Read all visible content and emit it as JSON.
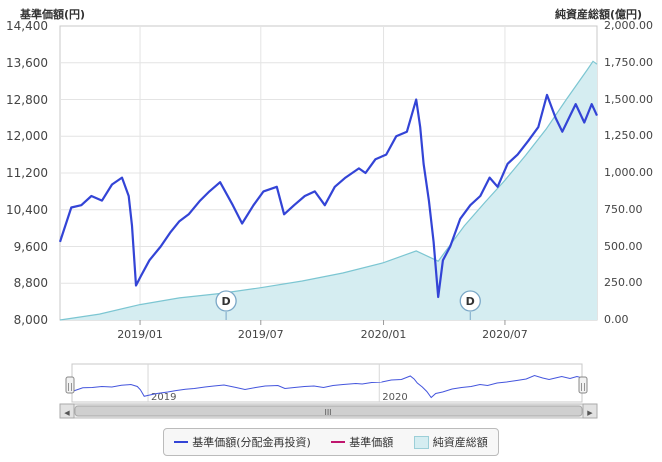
{
  "chart_data": {
    "type": "line",
    "left_axis_title": "基準価額(円)",
    "right_axis_title": "純資産総額(億円)",
    "left_ticks": [
      "14,400",
      "13,600",
      "12,800",
      "12,000",
      "11,200",
      "10,400",
      "9,600",
      "8,800",
      "8,000"
    ],
    "right_ticks": [
      "2,000.00",
      "1,750.00",
      "1,500.00",
      "1,250.00",
      "1,000.00",
      "750.00",
      "500.00",
      "250.00",
      "0.00"
    ],
    "x_ticks": [
      "2019/01",
      "2019/07",
      "2020/01",
      "2020/07"
    ],
    "ylim_left": [
      8000,
      14400
    ],
    "ylim_right": [
      0,
      2000
    ],
    "xlim": [
      "2018-09-03",
      "2020-11-16"
    ],
    "dividend_markers": [
      {
        "label": "D",
        "date": "2019-05-10"
      },
      {
        "label": "D",
        "date": "2020-05-10"
      }
    ],
    "series": [
      {
        "name": "基準価額(分配金再投資)",
        "color": "#3344d6",
        "axis": "left",
        "points": [
          [
            "2018-09-03",
            9700
          ],
          [
            "2018-09-20",
            10450
          ],
          [
            "2018-10-05",
            10500
          ],
          [
            "2018-10-20",
            10700
          ],
          [
            "2018-11-05",
            10600
          ],
          [
            "2018-11-20",
            10950
          ],
          [
            "2018-12-05",
            11100
          ],
          [
            "2018-12-15",
            10700
          ],
          [
            "2018-12-20",
            10050
          ],
          [
            "2018-12-26",
            8750
          ],
          [
            "2019-01-02",
            8950
          ],
          [
            "2019-01-15",
            9300
          ],
          [
            "2019-02-01",
            9600
          ],
          [
            "2019-02-15",
            9900
          ],
          [
            "2019-03-01",
            10150
          ],
          [
            "2019-03-15",
            10300
          ],
          [
            "2019-04-01",
            10600
          ],
          [
            "2019-04-15",
            10800
          ],
          [
            "2019-05-01",
            11000
          ],
          [
            "2019-05-20",
            10500
          ],
          [
            "2019-06-03",
            10100
          ],
          [
            "2019-06-20",
            10500
          ],
          [
            "2019-07-05",
            10800
          ],
          [
            "2019-07-25",
            10900
          ],
          [
            "2019-08-05",
            10300
          ],
          [
            "2019-08-20",
            10500
          ],
          [
            "2019-09-05",
            10700
          ],
          [
            "2019-09-20",
            10800
          ],
          [
            "2019-10-05",
            10500
          ],
          [
            "2019-10-20",
            10900
          ],
          [
            "2019-11-05",
            11100
          ],
          [
            "2019-11-25",
            11300
          ],
          [
            "2019-12-05",
            11200
          ],
          [
            "2019-12-20",
            11500
          ],
          [
            "2020-01-05",
            11600
          ],
          [
            "2020-01-20",
            12000
          ],
          [
            "2020-02-05",
            12100
          ],
          [
            "2020-02-19",
            12800
          ],
          [
            "2020-02-25",
            12200
          ],
          [
            "2020-03-01",
            11400
          ],
          [
            "2020-03-09",
            10600
          ],
          [
            "2020-03-16",
            9700
          ],
          [
            "2020-03-23",
            8500
          ],
          [
            "2020-03-30",
            9300
          ],
          [
            "2020-04-10",
            9600
          ],
          [
            "2020-04-25",
            10200
          ],
          [
            "2020-05-10",
            10500
          ],
          [
            "2020-05-25",
            10700
          ],
          [
            "2020-06-08",
            11100
          ],
          [
            "2020-06-20",
            10900
          ],
          [
            "2020-07-05",
            11400
          ],
          [
            "2020-07-20",
            11600
          ],
          [
            "2020-08-05",
            11900
          ],
          [
            "2020-08-20",
            12200
          ],
          [
            "2020-09-02",
            12900
          ],
          [
            "2020-09-15",
            12400
          ],
          [
            "2020-09-25",
            12100
          ],
          [
            "2020-10-05",
            12400
          ],
          [
            "2020-10-15",
            12700
          ],
          [
            "2020-10-28",
            12300
          ],
          [
            "2020-11-08",
            12700
          ],
          [
            "2020-11-16",
            12450
          ]
        ]
      },
      {
        "name": "基準価額",
        "color": "#c0166e",
        "axis": "left",
        "points": []
      },
      {
        "name": "純資産総額",
        "color": "#7cc6d2",
        "fill": "#d5edf1",
        "axis": "right",
        "points": [
          [
            "2018-09-03",
            0
          ],
          [
            "2018-11-01",
            40
          ],
          [
            "2019-01-01",
            105
          ],
          [
            "2019-03-01",
            150
          ],
          [
            "2019-05-01",
            180
          ],
          [
            "2019-07-01",
            220
          ],
          [
            "2019-09-01",
            265
          ],
          [
            "2019-11-01",
            320
          ],
          [
            "2020-01-01",
            390
          ],
          [
            "2020-02-19",
            470
          ],
          [
            "2020-03-23",
            400
          ],
          [
            "2020-05-01",
            640
          ],
          [
            "2020-06-01",
            800
          ],
          [
            "2020-07-01",
            950
          ],
          [
            "2020-08-01",
            1120
          ],
          [
            "2020-09-01",
            1300
          ],
          [
            "2020-10-01",
            1500
          ],
          [
            "2020-11-01",
            1700
          ],
          [
            "2020-11-10",
            1760
          ],
          [
            "2020-11-16",
            1740
          ]
        ]
      }
    ]
  },
  "navigator": {
    "year_labels": [
      "2019",
      "2020"
    ],
    "scroll_grip": "III",
    "left_arrow": "◀",
    "right_arrow": "▶",
    "handle_grip": "||"
  },
  "legend": {
    "items": [
      {
        "label": "基準価額(分配金再投資)",
        "color": "#3344d6",
        "kind": "line"
      },
      {
        "label": "基準価額",
        "color": "#c0166e",
        "kind": "line"
      },
      {
        "label": "純資産総額",
        "color": "#d5edf1",
        "kind": "area"
      }
    ]
  }
}
